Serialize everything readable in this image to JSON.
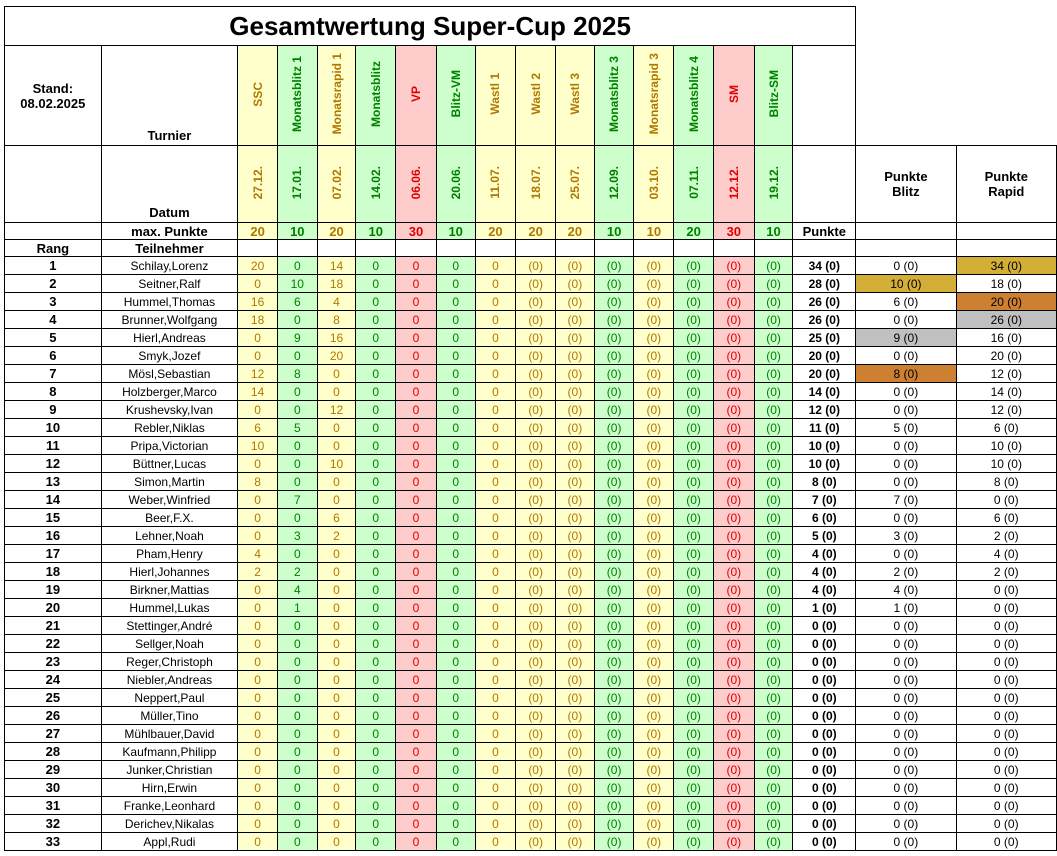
{
  "title": "Gesamtwertung Super-Cup 2025",
  "stand_label": "Stand:",
  "stand_date": "08.02.2025",
  "labels": {
    "turnier": "Turnier",
    "datum": "Datum",
    "max_punkte": "max. Punkte",
    "rang": "Rang",
    "teilnehmer": "Teilnehmer",
    "punkte": "Punkte",
    "punkte_blitz": "Punkte Blitz",
    "punkte_rapid": "Punkte Rapid"
  },
  "colors": {
    "rapid_bg": "#ffffcc",
    "rapid_text": "#b07800",
    "blitz_bg": "#ccffcc",
    "blitz_text": "#008000",
    "special_bg": "#ffcccc",
    "special_text": "#e00000",
    "gold": "#d4af37",
    "silver": "#c0c0c0",
    "bronze": "#cd7f32"
  },
  "tournaments": [
    {
      "name": "SSC",
      "date": "27.12.",
      "max": "20",
      "type": "y"
    },
    {
      "name": "Monatsblitz 1",
      "date": "17.01.",
      "max": "10",
      "type": "g"
    },
    {
      "name": "Monatsrapid 1",
      "date": "07.02.",
      "max": "20",
      "type": "y"
    },
    {
      "name": "Monatsblitz",
      "date": "14.02.",
      "max": "10",
      "type": "g"
    },
    {
      "name": "VP",
      "date": "06.06.",
      "max": "30",
      "type": "r"
    },
    {
      "name": "Blitz-VM",
      "date": "20.06.",
      "max": "10",
      "type": "g"
    },
    {
      "name": "Wastl 1",
      "date": "11.07.",
      "max": "20",
      "type": "y"
    },
    {
      "name": "Wastl 2",
      "date": "18.07.",
      "max": "20",
      "type": "y"
    },
    {
      "name": "Wastl 3",
      "date": "25.07.",
      "max": "20",
      "type": "y"
    },
    {
      "name": "Monatsblitz 3",
      "date": "12.09.",
      "max": "10",
      "type": "g"
    },
    {
      "name": "Monatsrapid 3",
      "date": "03.10.",
      "max": "10",
      "type": "y"
    },
    {
      "name": "Monatsblitz 4",
      "date": "07.11.",
      "max": "20",
      "type": "g"
    },
    {
      "name": "SM",
      "date": "12.12.",
      "max": "30",
      "type": "r"
    },
    {
      "name": "Blitz-SM",
      "date": "19.12.",
      "max": "10",
      "type": "g"
    }
  ],
  "players": [
    {
      "rank": "1",
      "name": "Schilay,Lorenz",
      "scores": [
        "20",
        "0",
        "14",
        "0",
        "0",
        "0",
        "0",
        "(0)",
        "(0)",
        "(0)",
        "(0)",
        "(0)",
        "(0)",
        "(0)"
      ],
      "total": "34 (0)",
      "blitz": "0 (0)",
      "rapid": "34 (0)",
      "rapid_medal": "gold"
    },
    {
      "rank": "2",
      "name": "Seitner,Ralf",
      "scores": [
        "0",
        "10",
        "18",
        "0",
        "0",
        "0",
        "0",
        "(0)",
        "(0)",
        "(0)",
        "(0)",
        "(0)",
        "(0)",
        "(0)"
      ],
      "total": "28 (0)",
      "blitz": "10 (0)",
      "rapid": "18 (0)",
      "blitz_medal": "gold"
    },
    {
      "rank": "3",
      "name": "Hummel,Thomas",
      "scores": [
        "16",
        "6",
        "4",
        "0",
        "0",
        "0",
        "0",
        "(0)",
        "(0)",
        "(0)",
        "(0)",
        "(0)",
        "(0)",
        "(0)"
      ],
      "total": "26 (0)",
      "blitz": "6 (0)",
      "rapid": "20 (0)",
      "rapid_medal": "bronze"
    },
    {
      "rank": "4",
      "name": "Brunner,Wolfgang",
      "scores": [
        "18",
        "0",
        "8",
        "0",
        "0",
        "0",
        "0",
        "(0)",
        "(0)",
        "(0)",
        "(0)",
        "(0)",
        "(0)",
        "(0)"
      ],
      "total": "26 (0)",
      "blitz": "0 (0)",
      "rapid": "26 (0)",
      "rapid_medal": "silver"
    },
    {
      "rank": "5",
      "name": "Hierl,Andreas",
      "scores": [
        "0",
        "9",
        "16",
        "0",
        "0",
        "0",
        "0",
        "(0)",
        "(0)",
        "(0)",
        "(0)",
        "(0)",
        "(0)",
        "(0)"
      ],
      "total": "25 (0)",
      "blitz": "9 (0)",
      "rapid": "16 (0)",
      "blitz_medal": "silver"
    },
    {
      "rank": "6",
      "name": "Smyk,Jozef",
      "scores": [
        "0",
        "0",
        "20",
        "0",
        "0",
        "0",
        "0",
        "(0)",
        "(0)",
        "(0)",
        "(0)",
        "(0)",
        "(0)",
        "(0)"
      ],
      "total": "20 (0)",
      "blitz": "0 (0)",
      "rapid": "20 (0)"
    },
    {
      "rank": "7",
      "name": "Mösl,Sebastian",
      "scores": [
        "12",
        "8",
        "0",
        "0",
        "0",
        "0",
        "0",
        "(0)",
        "(0)",
        "(0)",
        "(0)",
        "(0)",
        "(0)",
        "(0)"
      ],
      "total": "20 (0)",
      "blitz": "8 (0)",
      "rapid": "12 (0)",
      "blitz_medal": "bronze"
    },
    {
      "rank": "8",
      "name": "Holzberger,Marco",
      "scores": [
        "14",
        "0",
        "0",
        "0",
        "0",
        "0",
        "0",
        "(0)",
        "(0)",
        "(0)",
        "(0)",
        "(0)",
        "(0)",
        "(0)"
      ],
      "total": "14 (0)",
      "blitz": "0 (0)",
      "rapid": "14 (0)"
    },
    {
      "rank": "9",
      "name": "Krushevsky,Ivan",
      "scores": [
        "0",
        "0",
        "12",
        "0",
        "0",
        "0",
        "0",
        "(0)",
        "(0)",
        "(0)",
        "(0)",
        "(0)",
        "(0)",
        "(0)"
      ],
      "total": "12 (0)",
      "blitz": "0 (0)",
      "rapid": "12 (0)"
    },
    {
      "rank": "10",
      "name": "Rebler,Niklas",
      "scores": [
        "6",
        "5",
        "0",
        "0",
        "0",
        "0",
        "0",
        "(0)",
        "(0)",
        "(0)",
        "(0)",
        "(0)",
        "(0)",
        "(0)"
      ],
      "total": "11 (0)",
      "blitz": "5 (0)",
      "rapid": "6 (0)"
    },
    {
      "rank": "11",
      "name": "Pripa,Victorian",
      "scores": [
        "10",
        "0",
        "0",
        "0",
        "0",
        "0",
        "0",
        "(0)",
        "(0)",
        "(0)",
        "(0)",
        "(0)",
        "(0)",
        "(0)"
      ],
      "total": "10 (0)",
      "blitz": "0 (0)",
      "rapid": "10 (0)"
    },
    {
      "rank": "12",
      "name": "Büttner,Lucas",
      "scores": [
        "0",
        "0",
        "10",
        "0",
        "0",
        "0",
        "0",
        "(0)",
        "(0)",
        "(0)",
        "(0)",
        "(0)",
        "(0)",
        "(0)"
      ],
      "total": "10 (0)",
      "blitz": "0 (0)",
      "rapid": "10 (0)"
    },
    {
      "rank": "13",
      "name": "Simon,Martin",
      "scores": [
        "8",
        "0",
        "0",
        "0",
        "0",
        "0",
        "0",
        "(0)",
        "(0)",
        "(0)",
        "(0)",
        "(0)",
        "(0)",
        "(0)"
      ],
      "total": "8 (0)",
      "blitz": "0 (0)",
      "rapid": "8 (0)"
    },
    {
      "rank": "14",
      "name": "Weber,Winfried",
      "scores": [
        "0",
        "7",
        "0",
        "0",
        "0",
        "0",
        "0",
        "(0)",
        "(0)",
        "(0)",
        "(0)",
        "(0)",
        "(0)",
        "(0)"
      ],
      "total": "7 (0)",
      "blitz": "7 (0)",
      "rapid": "0 (0)"
    },
    {
      "rank": "15",
      "name": "Beer,F.X.",
      "scores": [
        "0",
        "0",
        "6",
        "0",
        "0",
        "0",
        "0",
        "(0)",
        "(0)",
        "(0)",
        "(0)",
        "(0)",
        "(0)",
        "(0)"
      ],
      "total": "6 (0)",
      "blitz": "0 (0)",
      "rapid": "6 (0)"
    },
    {
      "rank": "16",
      "name": "Lehner,Noah",
      "scores": [
        "0",
        "3",
        "2",
        "0",
        "0",
        "0",
        "0",
        "(0)",
        "(0)",
        "(0)",
        "(0)",
        "(0)",
        "(0)",
        "(0)"
      ],
      "total": "5 (0)",
      "blitz": "3 (0)",
      "rapid": "2 (0)"
    },
    {
      "rank": "17",
      "name": "Pham,Henry",
      "scores": [
        "4",
        "0",
        "0",
        "0",
        "0",
        "0",
        "0",
        "(0)",
        "(0)",
        "(0)",
        "(0)",
        "(0)",
        "(0)",
        "(0)"
      ],
      "total": "4 (0)",
      "blitz": "0 (0)",
      "rapid": "4 (0)"
    },
    {
      "rank": "18",
      "name": "Hierl,Johannes",
      "scores": [
        "2",
        "2",
        "0",
        "0",
        "0",
        "0",
        "0",
        "(0)",
        "(0)",
        "(0)",
        "(0)",
        "(0)",
        "(0)",
        "(0)"
      ],
      "total": "4 (0)",
      "blitz": "2 (0)",
      "rapid": "2 (0)"
    },
    {
      "rank": "19",
      "name": "Birkner,Mattias",
      "scores": [
        "0",
        "4",
        "0",
        "0",
        "0",
        "0",
        "0",
        "(0)",
        "(0)",
        "(0)",
        "(0)",
        "(0)",
        "(0)",
        "(0)"
      ],
      "total": "4 (0)",
      "blitz": "4 (0)",
      "rapid": "0 (0)"
    },
    {
      "rank": "20",
      "name": "Hummel,Lukas",
      "scores": [
        "0",
        "1",
        "0",
        "0",
        "0",
        "0",
        "0",
        "(0)",
        "(0)",
        "(0)",
        "(0)",
        "(0)",
        "(0)",
        "(0)"
      ],
      "total": "1 (0)",
      "blitz": "1 (0)",
      "rapid": "0 (0)"
    },
    {
      "rank": "21",
      "name": "Stettinger,André",
      "scores": [
        "0",
        "0",
        "0",
        "0",
        "0",
        "0",
        "0",
        "(0)",
        "(0)",
        "(0)",
        "(0)",
        "(0)",
        "(0)",
        "(0)"
      ],
      "total": "0 (0)",
      "blitz": "0 (0)",
      "rapid": "0 (0)"
    },
    {
      "rank": "22",
      "name": "Sellger,Noah",
      "scores": [
        "0",
        "0",
        "0",
        "0",
        "0",
        "0",
        "0",
        "(0)",
        "(0)",
        "(0)",
        "(0)",
        "(0)",
        "(0)",
        "(0)"
      ],
      "total": "0 (0)",
      "blitz": "0 (0)",
      "rapid": "0 (0)"
    },
    {
      "rank": "23",
      "name": "Reger,Christoph",
      "scores": [
        "0",
        "0",
        "0",
        "0",
        "0",
        "0",
        "0",
        "(0)",
        "(0)",
        "(0)",
        "(0)",
        "(0)",
        "(0)",
        "(0)"
      ],
      "total": "0 (0)",
      "blitz": "0 (0)",
      "rapid": "0 (0)"
    },
    {
      "rank": "24",
      "name": "Niebler,Andreas",
      "scores": [
        "0",
        "0",
        "0",
        "0",
        "0",
        "0",
        "0",
        "(0)",
        "(0)",
        "(0)",
        "(0)",
        "(0)",
        "(0)",
        "(0)"
      ],
      "total": "0 (0)",
      "blitz": "0 (0)",
      "rapid": "0 (0)"
    },
    {
      "rank": "25",
      "name": "Neppert,Paul",
      "scores": [
        "0",
        "0",
        "0",
        "0",
        "0",
        "0",
        "0",
        "(0)",
        "(0)",
        "(0)",
        "(0)",
        "(0)",
        "(0)",
        "(0)"
      ],
      "total": "0 (0)",
      "blitz": "0 (0)",
      "rapid": "0 (0)"
    },
    {
      "rank": "26",
      "name": "Müller,Tino",
      "scores": [
        "0",
        "0",
        "0",
        "0",
        "0",
        "0",
        "0",
        "(0)",
        "(0)",
        "(0)",
        "(0)",
        "(0)",
        "(0)",
        "(0)"
      ],
      "total": "0 (0)",
      "blitz": "0 (0)",
      "rapid": "0 (0)"
    },
    {
      "rank": "27",
      "name": "Mühlbauer,David",
      "scores": [
        "0",
        "0",
        "0",
        "0",
        "0",
        "0",
        "0",
        "(0)",
        "(0)",
        "(0)",
        "(0)",
        "(0)",
        "(0)",
        "(0)"
      ],
      "total": "0 (0)",
      "blitz": "0 (0)",
      "rapid": "0 (0)"
    },
    {
      "rank": "28",
      "name": "Kaufmann,Philipp",
      "scores": [
        "0",
        "0",
        "0",
        "0",
        "0",
        "0",
        "0",
        "(0)",
        "(0)",
        "(0)",
        "(0)",
        "(0)",
        "(0)",
        "(0)"
      ],
      "total": "0 (0)",
      "blitz": "0 (0)",
      "rapid": "0 (0)"
    },
    {
      "rank": "29",
      "name": "Junker,Christian",
      "scores": [
        "0",
        "0",
        "0",
        "0",
        "0",
        "0",
        "0",
        "(0)",
        "(0)",
        "(0)",
        "(0)",
        "(0)",
        "(0)",
        "(0)"
      ],
      "total": "0 (0)",
      "blitz": "0 (0)",
      "rapid": "0 (0)"
    },
    {
      "rank": "30",
      "name": "Hirn,Erwin",
      "scores": [
        "0",
        "0",
        "0",
        "0",
        "0",
        "0",
        "0",
        "(0)",
        "(0)",
        "(0)",
        "(0)",
        "(0)",
        "(0)",
        "(0)"
      ],
      "total": "0 (0)",
      "blitz": "0 (0)",
      "rapid": "0 (0)"
    },
    {
      "rank": "31",
      "name": "Franke,Leonhard",
      "scores": [
        "0",
        "0",
        "0",
        "0",
        "0",
        "0",
        "0",
        "(0)",
        "(0)",
        "(0)",
        "(0)",
        "(0)",
        "(0)",
        "(0)"
      ],
      "total": "0 (0)",
      "blitz": "0 (0)",
      "rapid": "0 (0)"
    },
    {
      "rank": "32",
      "name": "Derichev,Nikalas",
      "scores": [
        "0",
        "0",
        "0",
        "0",
        "0",
        "0",
        "0",
        "(0)",
        "(0)",
        "(0)",
        "(0)",
        "(0)",
        "(0)",
        "(0)"
      ],
      "total": "0 (0)",
      "blitz": "0 (0)",
      "rapid": "0 (0)"
    },
    {
      "rank": "33",
      "name": "Appl,Rudi",
      "scores": [
        "0",
        "0",
        "0",
        "0",
        "0",
        "0",
        "0",
        "(0)",
        "(0)",
        "(0)",
        "(0)",
        "(0)",
        "(0)",
        "(0)"
      ],
      "total": "0 (0)",
      "blitz": "0 (0)",
      "rapid": "0 (0)"
    }
  ]
}
